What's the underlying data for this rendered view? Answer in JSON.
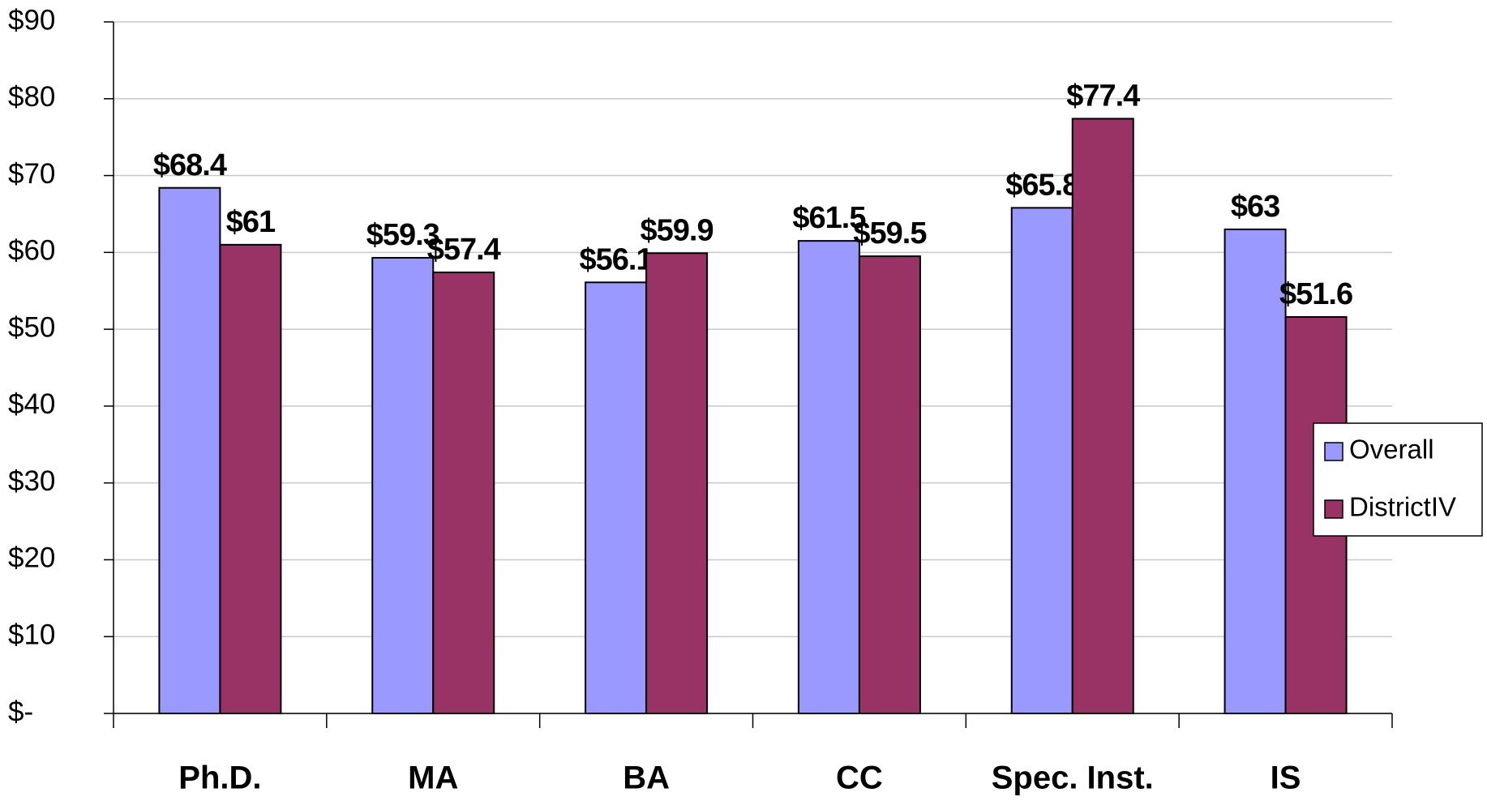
{
  "chart_data": {
    "type": "bar",
    "categories": [
      "Ph.D.",
      "MA",
      "BA",
      "CC",
      "Spec. Inst.",
      "IS"
    ],
    "series": [
      {
        "name": "Overall",
        "color": "#9999ff",
        "values": [
          68.4,
          59.3,
          56.1,
          61.5,
          65.8,
          63
        ],
        "value_labels": [
          "$68.4",
          "$59.3",
          "$56.1",
          "$61.5",
          "$65.8",
          "$63"
        ]
      },
      {
        "name": "DistrictIV",
        "color": "#993366",
        "values": [
          61,
          57.4,
          59.9,
          59.5,
          77.4,
          51.6
        ],
        "value_labels": [
          "$61",
          "$57.4",
          "$59.9",
          "$59.5",
          "$77.4",
          "$51.6"
        ]
      }
    ],
    "ylim": [
      0,
      90
    ],
    "yticks": [
      {
        "value": 0,
        "label": "$-"
      },
      {
        "value": 10,
        "label": "$10"
      },
      {
        "value": 20,
        "label": "$20"
      },
      {
        "value": 30,
        "label": "$30"
      },
      {
        "value": 40,
        "label": "$40"
      },
      {
        "value": 50,
        "label": "$50"
      },
      {
        "value": 60,
        "label": "$60"
      },
      {
        "value": 70,
        "label": "$70"
      },
      {
        "value": 80,
        "label": "$80"
      },
      {
        "value": 90,
        "label": "$90"
      }
    ],
    "grid": true,
    "legend": "right"
  }
}
